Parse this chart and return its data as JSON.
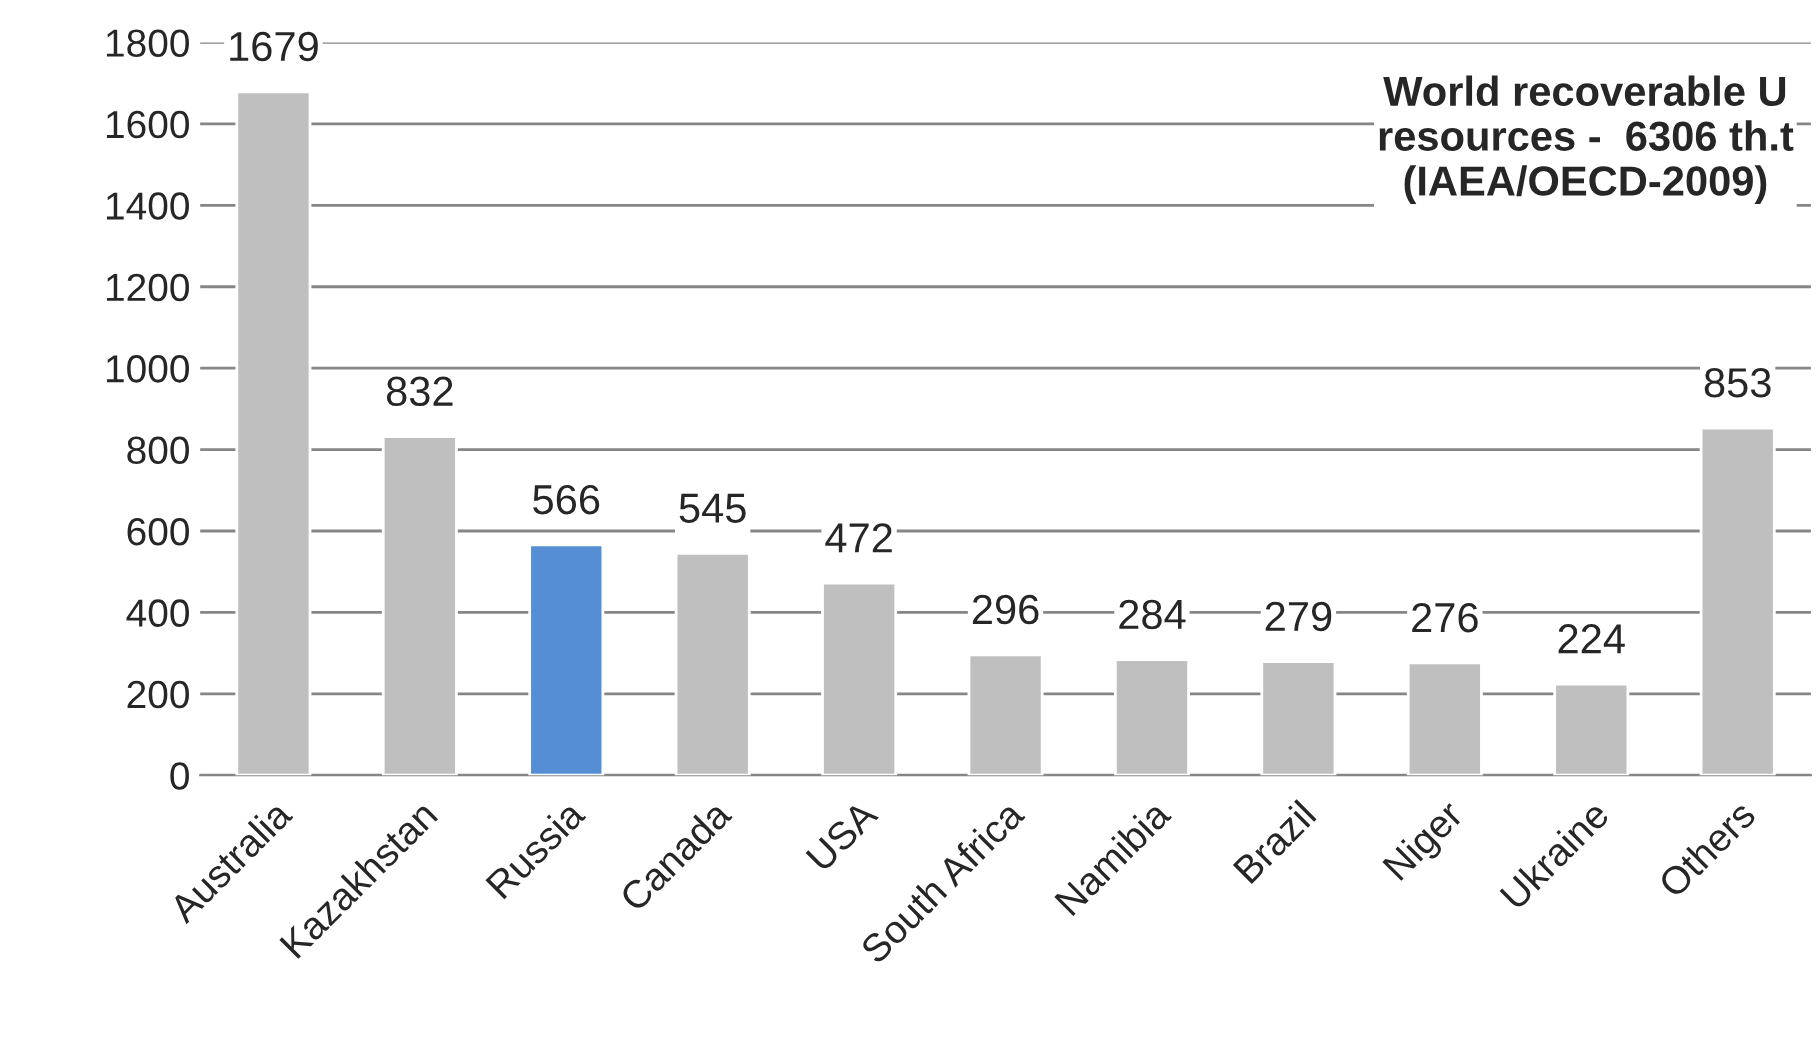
{
  "chart_data": {
    "type": "bar",
    "title": "World recoverable U\nresources -  6306 th.t\n(IAEA/OECD-2009)",
    "categories": [
      "Australia",
      "Kazakhstan",
      "Russia",
      "Canada",
      "USA",
      "South Africa",
      "Namibia",
      "Brazil",
      "Niger",
      "Ukraine",
      "Others"
    ],
    "values": [
      1679,
      832,
      566,
      545,
      472,
      296,
      284,
      279,
      276,
      224,
      853
    ],
    "colors": [
      "#bfbfbf",
      "#bfbfbf",
      "#558ed5",
      "#bfbfbf",
      "#bfbfbf",
      "#bfbfbf",
      "#bfbfbf",
      "#bfbfbf",
      "#bfbfbf",
      "#bfbfbf",
      "#bfbfbf"
    ],
    "ylim": [
      0,
      1800
    ],
    "yticks": [
      0,
      200,
      400,
      600,
      800,
      1000,
      1200,
      1400,
      1600,
      1800
    ],
    "grid": "y",
    "data_labels": true
  }
}
